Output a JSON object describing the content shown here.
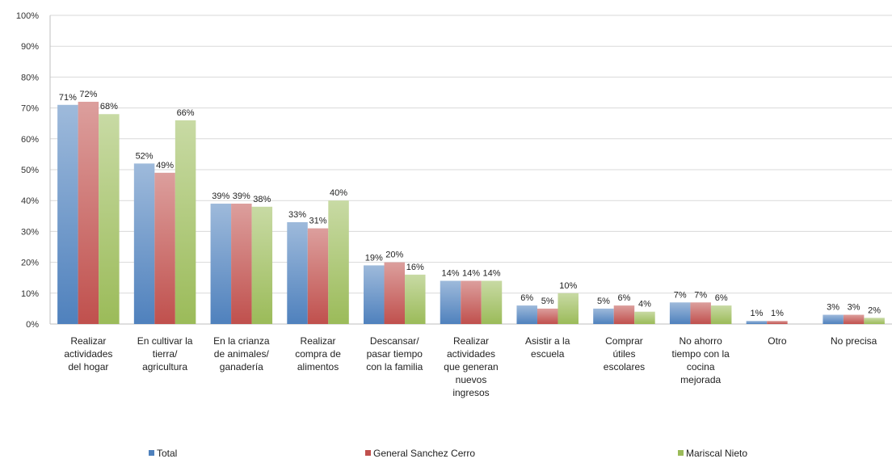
{
  "chart_data": {
    "type": "bar",
    "title": "",
    "xlabel": "",
    "ylabel": "",
    "ylim": [
      0,
      100
    ],
    "y_ticks": [
      "0%",
      "10%",
      "20%",
      "30%",
      "40%",
      "50%",
      "60%",
      "70%",
      "80%",
      "90%",
      "100%"
    ],
    "grid": true,
    "legend_position": "bottom",
    "categories": [
      [
        "Realizar",
        "actividades",
        "del hogar"
      ],
      [
        "En cultivar la",
        "tierra/",
        "agricultura"
      ],
      [
        "En la crianza",
        "de animales/",
        "ganadería"
      ],
      [
        "Realizar",
        "compra de",
        "alimentos"
      ],
      [
        "Descansar/",
        "pasar tiempo",
        "con la familia"
      ],
      [
        "Realizar",
        "actividades",
        "que generan",
        "nuevos",
        "ingresos"
      ],
      [
        "Asistir a la",
        "escuela"
      ],
      [
        "Comprar",
        "útiles",
        "escolares"
      ],
      [
        "No ahorro",
        "tiempo con la",
        "cocina",
        "mejorada"
      ],
      [
        "Otro"
      ],
      [
        "No precisa"
      ]
    ],
    "series": [
      {
        "name": "Total",
        "color": "#4f81bd",
        "values": [
          71,
          52,
          39,
          33,
          19,
          14,
          6,
          5,
          7,
          1,
          3
        ],
        "labels": [
          "71%",
          "52%",
          "39%",
          "33%",
          "19%",
          "14%",
          "6%",
          "5%",
          "7%",
          "1%",
          "3%"
        ]
      },
      {
        "name": "General Sanchez Cerro",
        "color": "#c0504d",
        "values": [
          72,
          49,
          39,
          31,
          20,
          14,
          5,
          6,
          7,
          1,
          3
        ],
        "labels": [
          "72%",
          "49%",
          "39%",
          "31%",
          "20%",
          "14%",
          "5%",
          "6%",
          "7%",
          "1%",
          "3%"
        ]
      },
      {
        "name": "Mariscal Nieto",
        "color": "#9bbb59",
        "values": [
          68,
          66,
          38,
          40,
          16,
          14,
          10,
          4,
          6,
          0,
          2
        ],
        "labels": [
          "68%",
          "66%",
          "38%",
          "40%",
          "16%",
          "14%",
          "10%",
          "4%",
          "6%",
          "",
          "2%"
        ]
      }
    ]
  }
}
